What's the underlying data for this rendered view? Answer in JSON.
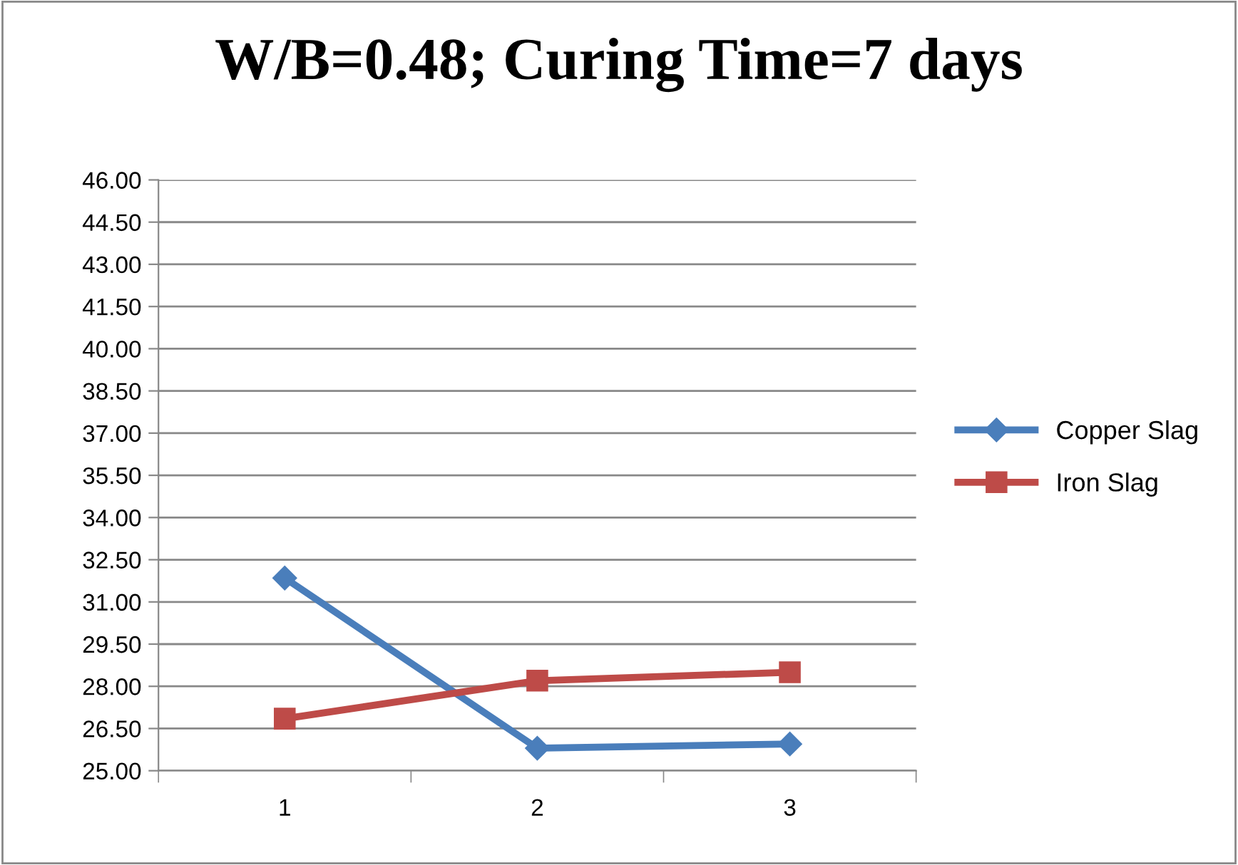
{
  "chart_data": {
    "type": "line",
    "title": "W/B=0.48; Curing Time=7 days",
    "categories": [
      "1",
      "2",
      "3"
    ],
    "series": [
      {
        "name": "Copper Slag",
        "color": "#4a7ebb",
        "marker": "diamond",
        "values": [
          31.85,
          25.8,
          25.95
        ]
      },
      {
        "name": "Iron Slag",
        "color": "#be4b48",
        "marker": "square",
        "values": [
          26.85,
          28.2,
          28.5
        ]
      }
    ],
    "ylim": [
      25,
      46
    ],
    "yticks": [
      {
        "value": 25,
        "label": "25.00"
      },
      {
        "value": 26.5,
        "label": "26.50"
      },
      {
        "value": 28,
        "label": "28.00"
      },
      {
        "value": 29.5,
        "label": "29.50"
      },
      {
        "value": 31,
        "label": "31.00"
      },
      {
        "value": 32.5,
        "label": "32.50"
      },
      {
        "value": 34,
        "label": "34.00"
      },
      {
        "value": 35.5,
        "label": "35.50"
      },
      {
        "value": 37,
        "label": "37.00"
      },
      {
        "value": 38.5,
        "label": "38.50"
      },
      {
        "value": 40,
        "label": "40.00"
      },
      {
        "value": 41.5,
        "label": "41.50"
      },
      {
        "value": 43,
        "label": "43.00"
      },
      {
        "value": 44.5,
        "label": "44.50"
      },
      {
        "value": 46,
        "label": "46.00"
      }
    ],
    "grid": "y",
    "legend": "right",
    "line_style": "solid"
  }
}
